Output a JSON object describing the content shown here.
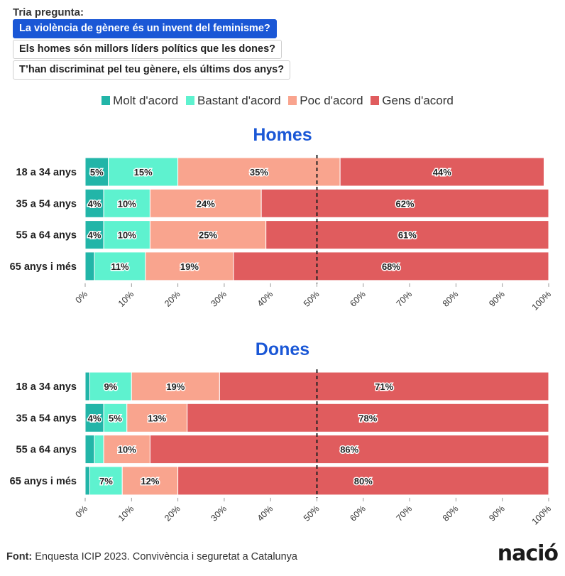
{
  "selector": {
    "label": "Tria pregunta:",
    "options": [
      "La violència de gènere és un invent del feminisme?",
      "Els homes són millors líders polítics que les dones?",
      "T’han discriminat pel teu gènere, els últims dos anys?"
    ],
    "selected_index": 0
  },
  "colors": {
    "Molt d'acord": "#22b5a8",
    "Bastant d'acord": "#5ef2cf",
    "Poc d'acord": "#f9a48e",
    "Gens d'acord": "#e05c5e",
    "title": "#1a57d6"
  },
  "chart_data": [
    {
      "type": "bar",
      "orientation": "horizontal",
      "stacked": true,
      "title": "Homes",
      "categories": [
        "18 a 34 anys",
        "35 a 54 anys",
        "55 a 64 anys",
        "65 anys i més"
      ],
      "series": [
        {
          "name": "Molt d'acord",
          "values": [
            5,
            4,
            4,
            2
          ]
        },
        {
          "name": "Bastant d'acord",
          "values": [
            15,
            10,
            10,
            11
          ]
        },
        {
          "name": "Poc d'acord",
          "values": [
            35,
            24,
            25,
            19
          ]
        },
        {
          "name": "Gens d'acord",
          "values": [
            44,
            62,
            61,
            68
          ]
        }
      ],
      "xlim": [
        0,
        100
      ],
      "x_ticks": [
        "0%",
        "10%",
        "20%",
        "30%",
        "40%",
        "50%",
        "60%",
        "70%",
        "80%",
        "90%",
        "100%"
      ],
      "reference_line": 50,
      "legend": "top-center"
    },
    {
      "type": "bar",
      "orientation": "horizontal",
      "stacked": true,
      "title": "Dones",
      "categories": [
        "18 a 34 anys",
        "35 a 54 anys",
        "55 a 64 anys",
        "65 anys i més"
      ],
      "series": [
        {
          "name": "Molt d'acord",
          "values": [
            1,
            4,
            2,
            1
          ]
        },
        {
          "name": "Bastant d'acord",
          "values": [
            9,
            5,
            2,
            7
          ]
        },
        {
          "name": "Poc d'acord",
          "values": [
            19,
            13,
            10,
            12
          ]
        },
        {
          "name": "Gens d'acord",
          "values": [
            71,
            78,
            86,
            80
          ]
        }
      ],
      "xlim": [
        0,
        100
      ],
      "x_ticks": [
        "0%",
        "10%",
        "20%",
        "30%",
        "40%",
        "50%",
        "60%",
        "70%",
        "80%",
        "90%",
        "100%"
      ],
      "reference_line": 50
    }
  ],
  "footer": {
    "source_label": "Font:",
    "source_text": " Enquesta ICIP 2023. Convivència i seguretat a Catalunya",
    "logo": "nació"
  }
}
